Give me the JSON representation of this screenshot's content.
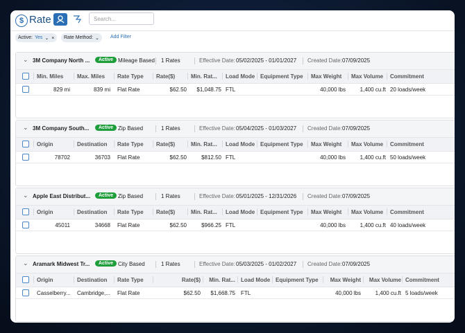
{
  "header": {
    "title": "Rate",
    "search_placeholder": "Search..."
  },
  "filters": {
    "items": [
      {
        "label": "Active:",
        "value": "Yes"
      },
      {
        "label": "Rate Method:"
      }
    ],
    "add": "Add Filter"
  },
  "labels": {
    "effective": "Effective Date:",
    "created": "Created Date:"
  },
  "groups": [
    {
      "name": "3M Company North ...",
      "status": "Active",
      "method": "Mileage Based",
      "rates": "1 Rates",
      "effective": "05/02/2025 - 01/01/2027",
      "created": "07/09/2025",
      "columns": [
        "Min. Miles",
        "Max. Miles",
        "Rate Type",
        "Rate($)",
        "Min. Rat...",
        "Load Mode",
        "Equipment Type",
        "Max Weight",
        "Max Volume",
        "Commitment"
      ],
      "rows": [
        [
          "829 mi",
          "839 mi",
          "Flat Rate",
          "$62.50",
          "$1,048.75",
          "FTL",
          null,
          "40,000 lbs",
          "1,400 cu.ft",
          "20 loads/week"
        ]
      ]
    },
    {
      "name": "3M Company South...",
      "status": "Active",
      "method": "Zip Based",
      "rates": "1 Rates",
      "effective": "05/04/2025 - 01/03/2027",
      "created": "07/09/2025",
      "columns": [
        "Origin",
        "Destination",
        "Rate Type",
        "Rate($)",
        "Min. Rat...",
        "Load Mode",
        "Equipment Type",
        "Max Weight",
        "Max Volume",
        "Commitment"
      ],
      "rows": [
        [
          "78702",
          "36703",
          "Flat Rate",
          "$62.50",
          "$812.50",
          "FTL",
          null,
          "40,000 lbs",
          "1,400 cu.ft",
          "50 loads/week"
        ]
      ]
    },
    {
      "name": "Apple East Distribut...",
      "status": "Active",
      "method": "Zip Based",
      "rates": "1 Rates",
      "effective": "05/01/2025 - 12/31/2026",
      "created": "07/09/2025",
      "columns": [
        "Origin",
        "Destination",
        "Rate Type",
        "Rate($)",
        "Min. Rat...",
        "Load Mode",
        "Equipment Type",
        "Max Weight",
        "Max Volume",
        "Commitment"
      ],
      "rows": [
        [
          "45011",
          "34668",
          "Flat Rate",
          "$62.50",
          "$966.25",
          "FTL",
          null,
          "40,000 lbs",
          "1,400 cu.ft",
          "40 loads/week"
        ]
      ]
    },
    {
      "name": "Aramark Midwest Tr...",
      "status": "Active",
      "method": "City Based",
      "rates": "1 Rates",
      "effective": "05/03/2025 - 01/02/2027",
      "created": "07/09/2025",
      "columns": [
        "Origin",
        "Destination",
        "Rate Type",
        "Rate($)",
        "Min. Rat...",
        "Load Mode",
        "Equipment Type",
        "Max Weight",
        "Max Volume",
        "Commitment"
      ],
      "rows": [
        [
          "Casselberry...",
          "Cambridge,...",
          "Flat Rate",
          "$62.50",
          "$1,668.75",
          "FTL",
          null,
          "40,000 lbs",
          "1,400 cu.ft",
          "5 loads/week"
        ]
      ]
    }
  ]
}
